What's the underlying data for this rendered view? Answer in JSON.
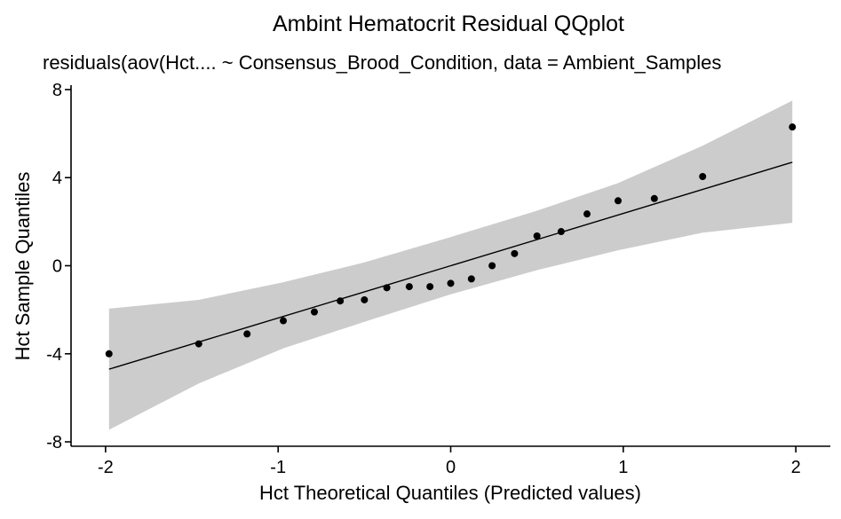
{
  "chart_data": {
    "type": "scatter",
    "title": "Ambint Hematocrit Residual QQplot",
    "subtitle": "residuals(aov(Hct.... ~ Consensus_Brood_Condition, data = Ambient_Samples",
    "xlabel": "Hct Theoretical Quantiles (Predicted values)",
    "ylabel": "Hct Sample Quantiles",
    "xlim": [
      -2.2,
      2.2
    ],
    "ylim": [
      -8.2,
      8.2
    ],
    "x_ticks": [
      -2,
      -1,
      0,
      1,
      2
    ],
    "x_tick_labels": [
      "-2",
      "-1",
      "0",
      "1",
      "2"
    ],
    "y_ticks": [
      -8,
      -4,
      0,
      4,
      8
    ],
    "y_tick_labels": [
      "-8",
      "-4",
      "0",
      "4",
      "8"
    ],
    "grid": false,
    "points": {
      "x": [
        -1.98,
        -1.46,
        -1.18,
        -0.97,
        -0.79,
        -0.64,
        -0.5,
        -0.37,
        -0.24,
        -0.12,
        0.0,
        0.12,
        0.24,
        0.37,
        0.5,
        0.64,
        0.79,
        0.97,
        1.18,
        1.46,
        1.98
      ],
      "y": [
        -4.0,
        -3.55,
        -3.1,
        -2.5,
        -2.1,
        -1.6,
        -1.55,
        -1.0,
        -0.95,
        -0.95,
        -0.8,
        -0.6,
        0.0,
        0.55,
        1.35,
        1.55,
        2.35,
        2.95,
        3.05,
        4.05,
        6.3
      ]
    },
    "reference_line": {
      "x": [
        -1.98,
        1.98
      ],
      "y": [
        -4.7,
        4.7
      ]
    },
    "confidence_band": {
      "x": [
        -1.98,
        -1.46,
        -0.97,
        -0.5,
        0.0,
        0.5,
        0.97,
        1.46,
        1.98
      ],
      "upper": [
        -1.95,
        -1.55,
        -0.75,
        0.15,
        1.3,
        2.5,
        3.75,
        5.45,
        7.5
      ],
      "lower": [
        -7.45,
        -5.35,
        -3.75,
        -2.55,
        -1.3,
        -0.2,
        0.7,
        1.5,
        1.95
      ]
    },
    "colors": {
      "points": "#000000",
      "line": "#000000",
      "band": "#cccccc",
      "axis": "#000000"
    }
  }
}
